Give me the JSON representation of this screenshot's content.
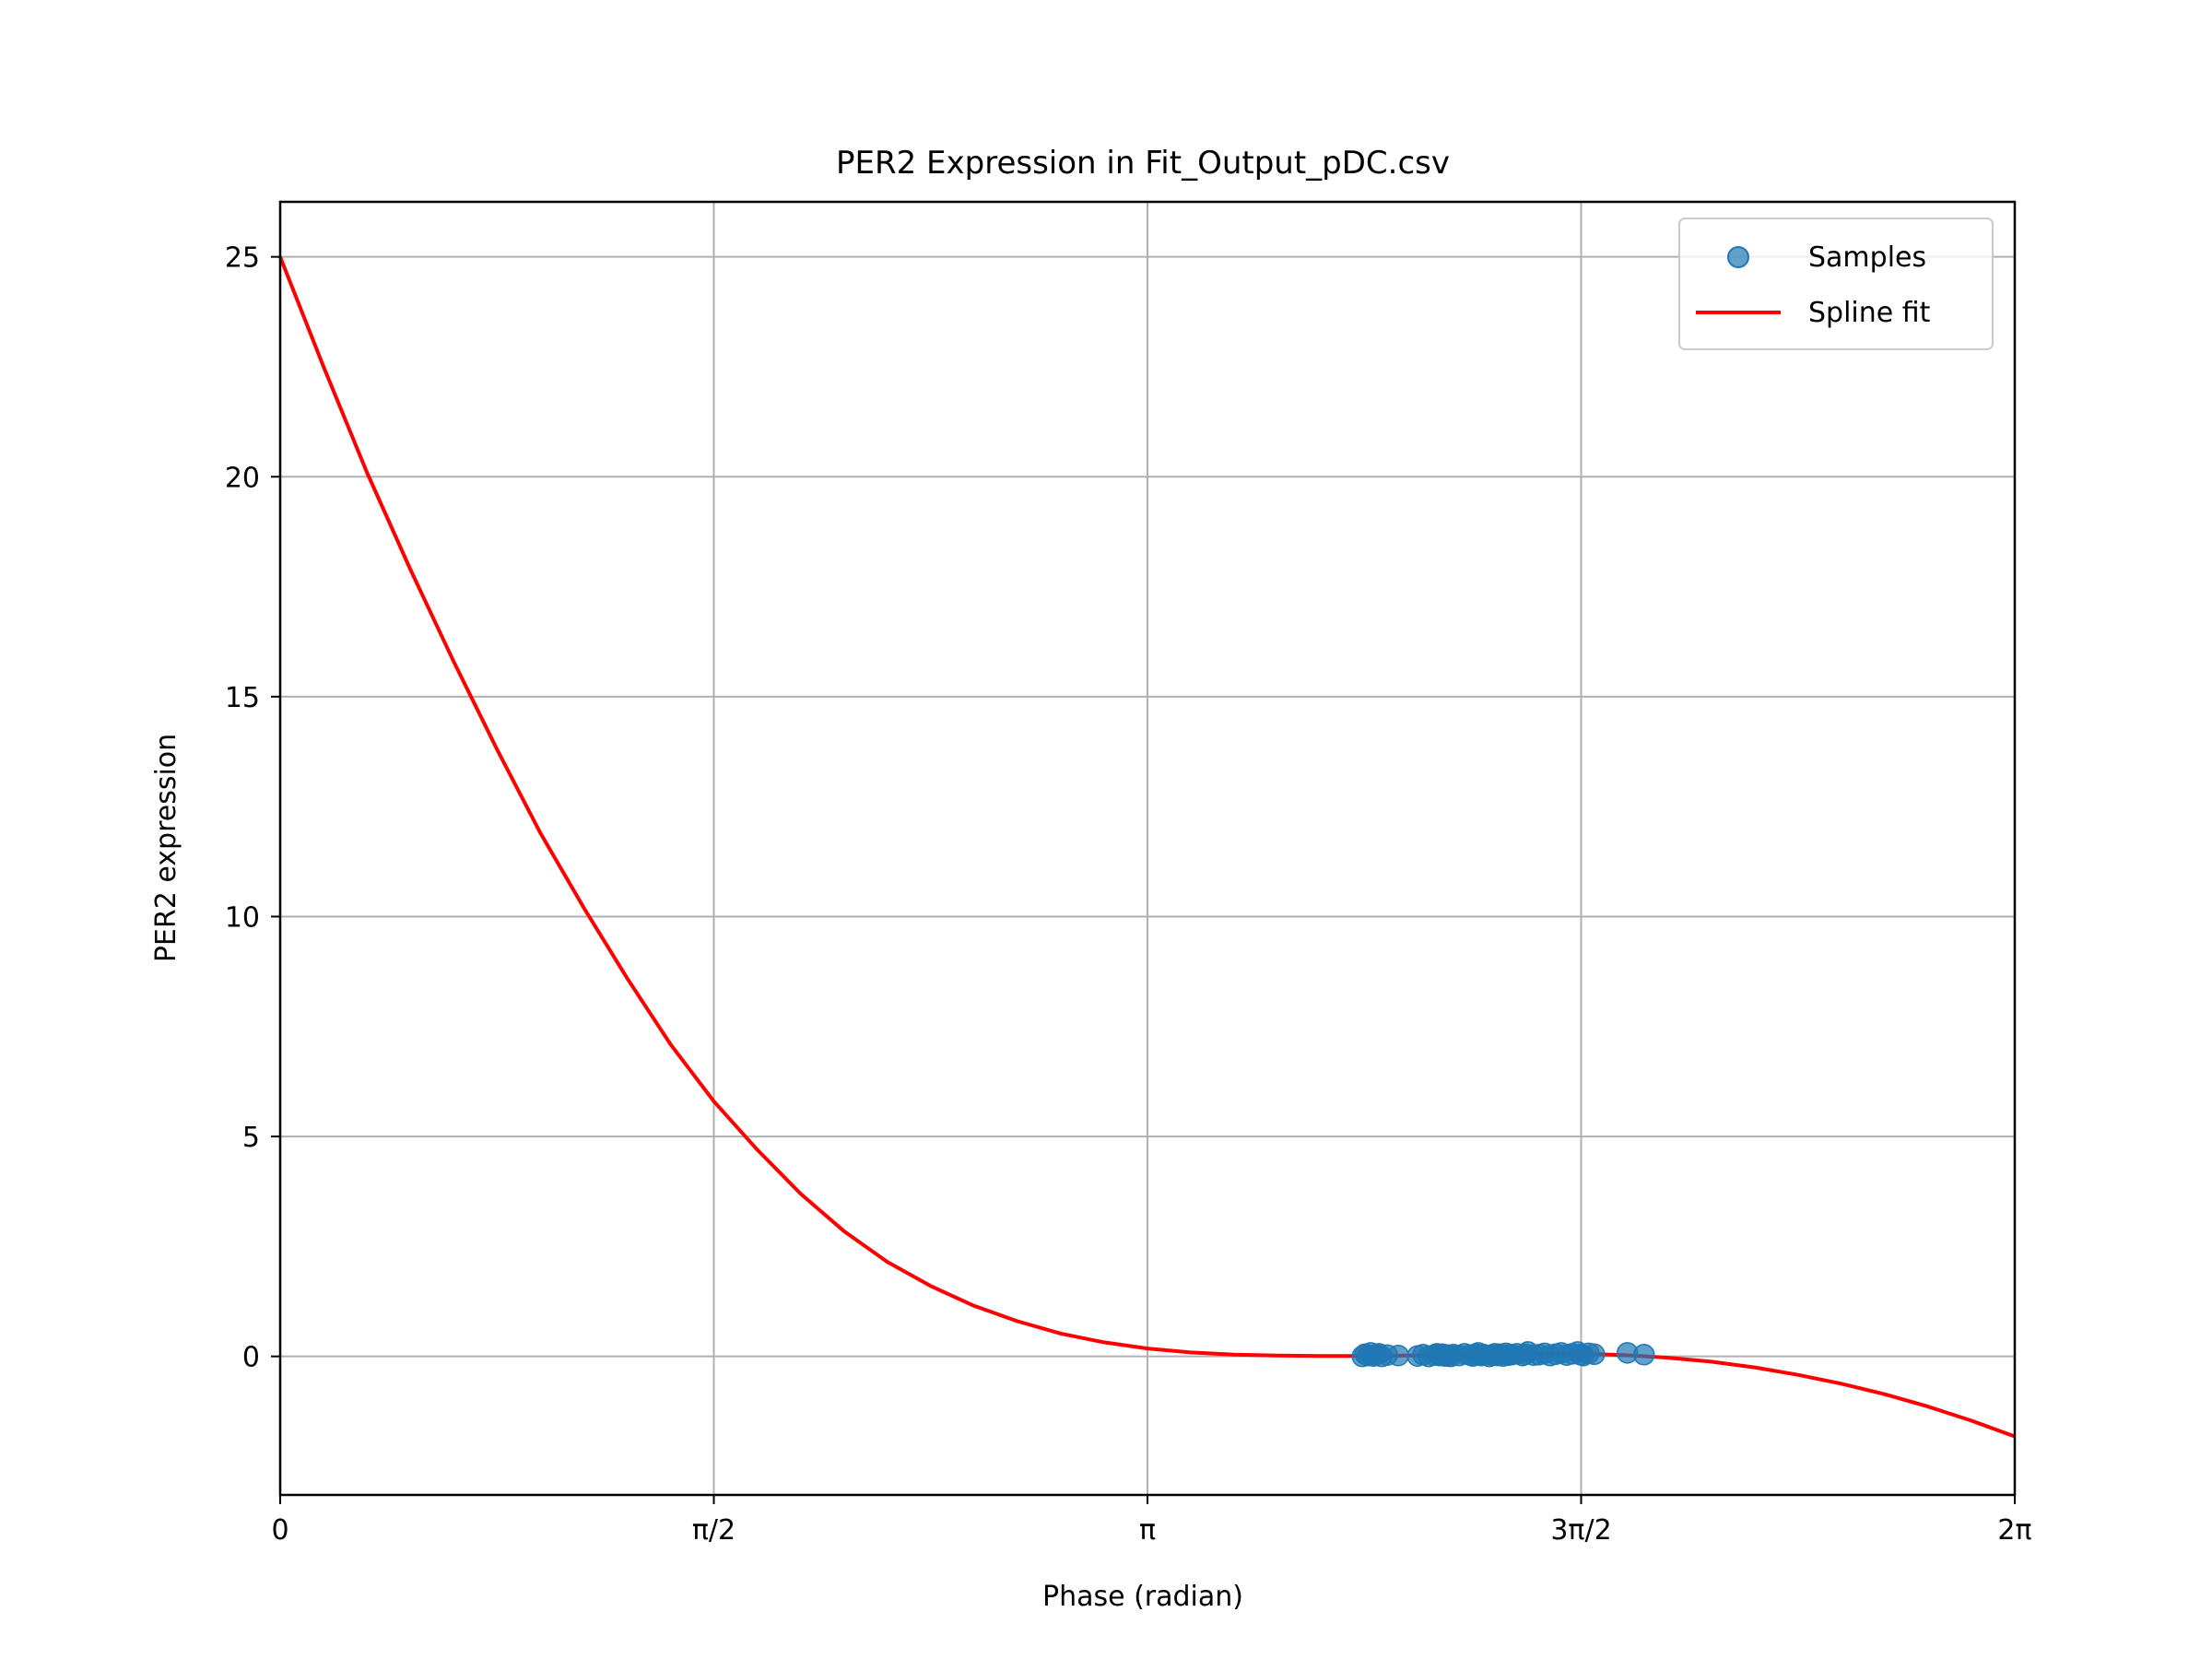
{
  "chart_data": {
    "type": "scatter",
    "title": "PER2 Expression in Fit_Output_pDC.csv",
    "xlabel": "Phase (radian)",
    "ylabel": "PER2 expression",
    "xlim": [
      0,
      6.283185
    ],
    "ylim": [
      -3.15,
      26.25
    ],
    "x_ticks": [
      {
        "value": 0,
        "label": "0"
      },
      {
        "value": 1.570796,
        "label": "π/2"
      },
      {
        "value": 3.141593,
        "label": "π"
      },
      {
        "value": 4.712389,
        "label": "3π/2"
      },
      {
        "value": 6.283185,
        "label": "2π"
      }
    ],
    "y_ticks": [
      {
        "value": 0,
        "label": "0"
      },
      {
        "value": 5,
        "label": "5"
      },
      {
        "value": 10,
        "label": "10"
      },
      {
        "value": 15,
        "label": "15"
      },
      {
        "value": 20,
        "label": "20"
      },
      {
        "value": 25,
        "label": "25"
      }
    ],
    "grid": true,
    "legend": {
      "position": "top-right",
      "entries": [
        "Samples",
        "Spline fit"
      ]
    },
    "series": [
      {
        "name": "Samples",
        "kind": "scatter",
        "color": "#1f77b4",
        "x": [
          3.92,
          3.93,
          3.94,
          3.95,
          3.96,
          3.97,
          3.98,
          3.99,
          4.01,
          4.05,
          4.12,
          4.14,
          4.16,
          4.18,
          4.19,
          4.2,
          4.21,
          4.22,
          4.23,
          4.24,
          4.25,
          4.27,
          4.29,
          4.31,
          4.32,
          4.33,
          4.34,
          4.35,
          4.36,
          4.38,
          4.39,
          4.4,
          4.41,
          4.42,
          4.43,
          4.44,
          4.45,
          4.46,
          4.48,
          4.5,
          4.51,
          4.52,
          4.54,
          4.56,
          4.58,
          4.6,
          4.62,
          4.64,
          4.66,
          4.68,
          4.7,
          4.71,
          4.72,
          4.74,
          4.76,
          4.88,
          4.94
        ],
        "y": [
          0.0,
          0.05,
          0.02,
          0.08,
          0.01,
          0.04,
          0.06,
          0.0,
          0.03,
          0.02,
          0.01,
          0.04,
          0.0,
          0.03,
          0.06,
          0.02,
          0.05,
          0.01,
          0.03,
          0.0,
          0.04,
          0.02,
          0.06,
          0.03,
          0.01,
          0.05,
          0.08,
          0.02,
          0.04,
          0.0,
          0.03,
          0.06,
          0.02,
          0.05,
          0.01,
          0.07,
          0.03,
          0.04,
          0.06,
          0.02,
          0.05,
          0.1,
          0.03,
          0.04,
          0.07,
          0.02,
          0.05,
          0.08,
          0.03,
          0.06,
          0.1,
          0.04,
          0.02,
          0.07,
          0.05,
          0.08,
          0.04
        ]
      },
      {
        "name": "Spline fit",
        "kind": "line",
        "color": "#ff0000",
        "x": [
          0,
          0.1571,
          0.3142,
          0.4712,
          0.6283,
          0.7854,
          0.9425,
          1.0996,
          1.2566,
          1.4137,
          1.5708,
          1.7279,
          1.885,
          2.042,
          2.1991,
          2.3562,
          2.5133,
          2.6704,
          2.8274,
          2.9845,
          3.1416,
          3.2987,
          3.4558,
          3.6128,
          3.7699,
          3.927,
          4.0841,
          4.2412,
          4.3982,
          4.5553,
          4.7124,
          4.8695,
          5.0265,
          5.1836,
          5.3407,
          5.4978,
          5.6549,
          5.8119,
          5.969,
          6.1261,
          6.2832
        ],
        "y": [
          25.0,
          22.5,
          20.1,
          17.9,
          15.8,
          13.8,
          11.9,
          10.2,
          8.6,
          7.1,
          5.8,
          4.7,
          3.7,
          2.85,
          2.15,
          1.6,
          1.15,
          0.8,
          0.52,
          0.32,
          0.18,
          0.09,
          0.04,
          0.02,
          0.01,
          0.01,
          0.02,
          0.03,
          0.05,
          0.06,
          0.06,
          0.03,
          -0.03,
          -0.12,
          -0.25,
          -0.42,
          -0.62,
          -0.86,
          -1.14,
          -1.46,
          -1.82
        ]
      }
    ]
  }
}
